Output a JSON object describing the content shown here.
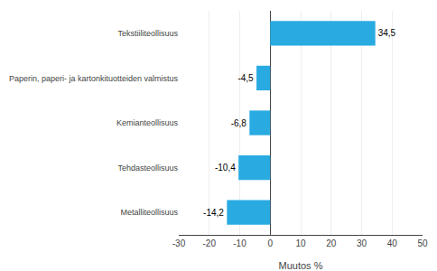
{
  "chart_data": {
    "type": "bar",
    "orientation": "horizontal",
    "categories": [
      "Metalliteollisuus",
      "Tehdasteollisuus",
      "Kemianteollisuus",
      "Paperin, paperi- ja kartonkituotteiden valmistus",
      "Tekstiiliteollisuus"
    ],
    "values": [
      -14.2,
      -10.4,
      -6.8,
      -4.5,
      34.5
    ],
    "value_labels": [
      "-14,2",
      "-10,4",
      "-6,8",
      "-4,5",
      "34,5"
    ],
    "data_labels": true,
    "color": "#29ABE2",
    "xlabel": "Muutos %",
    "xlim": [
      -30,
      50
    ],
    "xticks": [
      -30,
      -20,
      -10,
      0,
      10,
      20,
      30,
      40,
      50
    ],
    "grid": true
  }
}
